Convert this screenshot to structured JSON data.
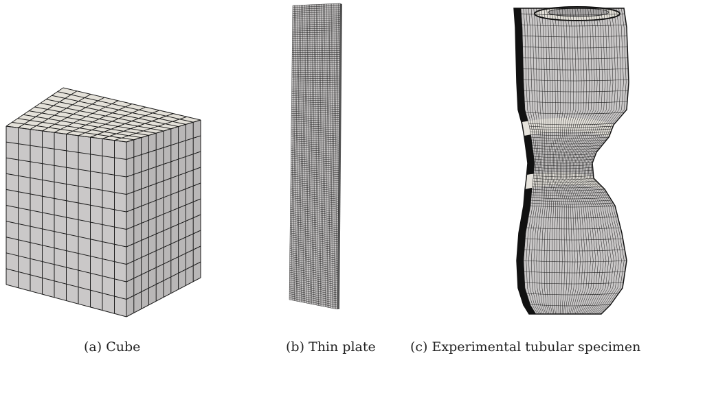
{
  "figure": {
    "panels": [
      {
        "id": "a",
        "caption": "(a) Cube"
      },
      {
        "id": "b",
        "caption": "(b) Thin plate"
      },
      {
        "id": "c",
        "caption": "(c) Experimental tubular specimen"
      }
    ],
    "colors": {
      "mesh_face": "#cac8c8",
      "mesh_top": "#e4e1d9",
      "mesh_line": "#1a1a1a",
      "shadow": "#8e8c8c"
    }
  }
}
